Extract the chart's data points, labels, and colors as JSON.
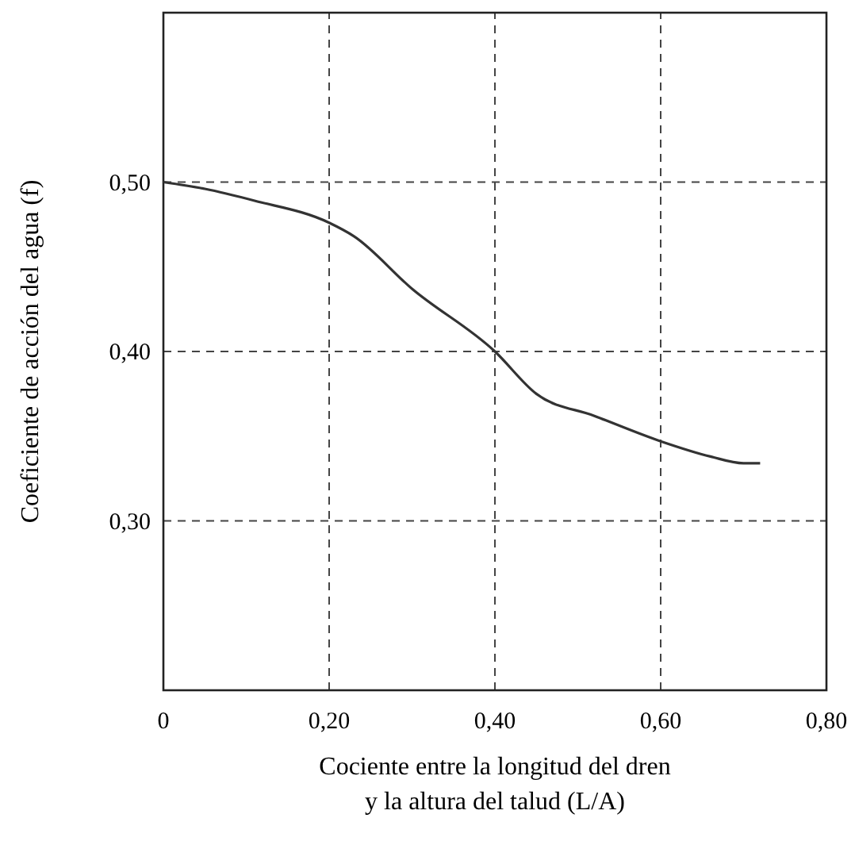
{
  "chart_data": {
    "type": "line",
    "xlabel": "Cociente entre la longitud del dren\ny la altura del talud (L/A)",
    "ylabel": "Coeficiente de acción del agua (f)",
    "x": [
      0,
      0.05,
      0.11,
      0.2,
      0.23,
      0.3,
      0.4,
      0.45,
      0.52,
      0.6,
      0.66,
      0.7,
      0.72
    ],
    "series": [
      {
        "color": "#333333",
        "values": [
          0.5,
          0.496,
          0.489,
          0.476,
          0.468,
          0.437,
          0.4,
          0.375,
          0.362,
          0.347,
          0.338,
          0.334,
          0.334
        ]
      }
    ],
    "xlim": [
      0,
      0.8
    ],
    "ylim": [
      0.2,
      0.6
    ],
    "xticks": [
      {
        "value": 0,
        "label": "0"
      },
      {
        "value": 0.2,
        "label": "0,20"
      },
      {
        "value": 0.4,
        "label": "0,40"
      },
      {
        "value": 0.6,
        "label": "0,60"
      },
      {
        "value": 0.8,
        "label": "0,80"
      }
    ],
    "yticks": [
      {
        "value": 0.3,
        "label": "0,30"
      },
      {
        "value": 0.4,
        "label": "0,40"
      },
      {
        "value": 0.5,
        "label": "0,50"
      }
    ],
    "grid": true,
    "line_style": "solid",
    "marker": "none"
  }
}
